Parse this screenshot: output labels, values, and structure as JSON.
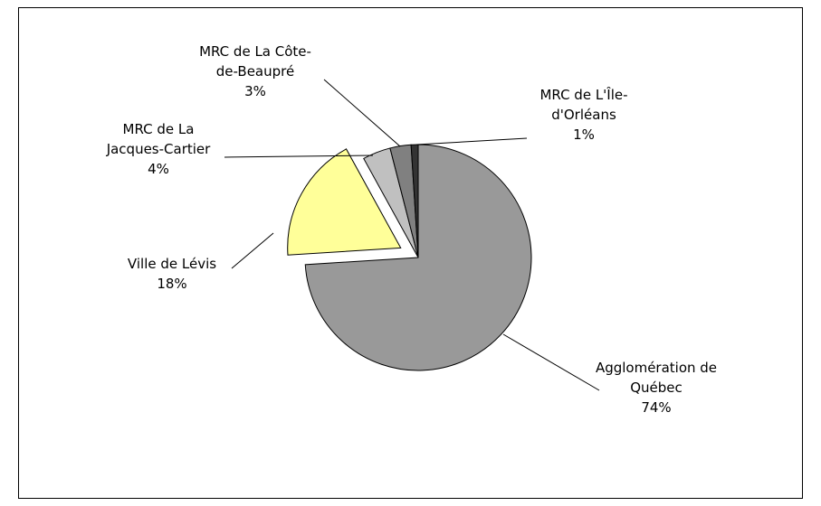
{
  "chart_data": {
    "type": "pie",
    "categories": [
      "Agglomération de\nQuébec",
      "Ville de Lévis",
      "MRC de La\nJacques-Cartier",
      "MRC de La Côte-\nde-Beaupré",
      "MRC de L'Île-\nd'Orléans"
    ],
    "values": [
      74,
      18,
      4,
      3,
      1
    ],
    "value_labels": [
      "74%",
      "18%",
      "4%",
      "3%",
      "1%"
    ],
    "colors": [
      "#999999",
      "#ffff99",
      "#c0c0c0",
      "#808080",
      "#333333"
    ],
    "exploded": [
      false,
      true,
      false,
      false,
      false
    ]
  }
}
